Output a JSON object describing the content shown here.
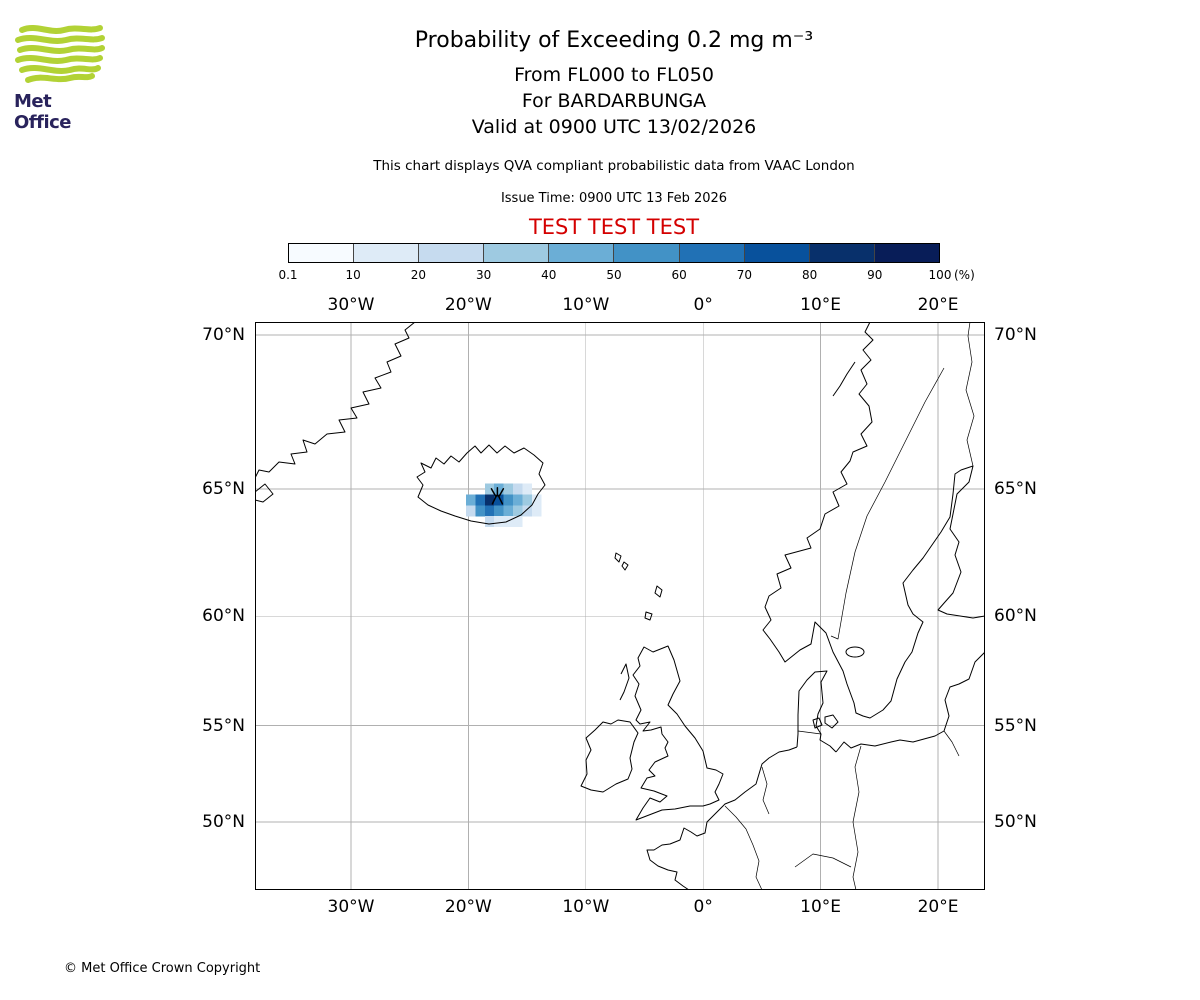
{
  "header": {
    "logo_text": "Met Office",
    "title": "Probability of Exceeding 0.2 mg m⁻³",
    "subtitle_flight_levels": "From FL000 to FL050",
    "subtitle_volcano": "For BARDARBUNGA",
    "subtitle_valid": "Valid at 0900 UTC 13/02/2026",
    "description": "This chart displays QVA compliant probabilistic data from VAAC London",
    "issue_time": "Issue Time: 0900 UTC 13 Feb 2026",
    "test_banner": "TEST TEST TEST"
  },
  "footer": {
    "copyright": "© Met Office Crown Copyright"
  },
  "colors": {
    "test_banner": "#d40000",
    "logo_green": "#b2d235",
    "logo_text": "#29235c",
    "grid_line": "#b0b0b0",
    "coastline": "#000000"
  },
  "chart_data": {
    "type": "heatmap",
    "title": "Probability of Exceeding 0.2 mg m⁻³",
    "subtitle": "From FL000 to FL050 — For BARDARBUNGA — Valid at 0900 UTC 13/02/2026",
    "projection": "mercator",
    "map_extent": {
      "lon_min": -38.2,
      "lon_max": 24.0,
      "lat_min": 46.1,
      "lat_max": 70.4
    },
    "grid": "on",
    "lon_ticks": [
      {
        "deg": -30,
        "label": "30°W"
      },
      {
        "deg": -20,
        "label": "20°W"
      },
      {
        "deg": -10,
        "label": "10°W"
      },
      {
        "deg": 0,
        "label": "0°"
      },
      {
        "deg": 10,
        "label": "10°E"
      },
      {
        "deg": 20,
        "label": "20°E"
      }
    ],
    "lat_ticks": [
      {
        "deg": 70,
        "label": "70°N"
      },
      {
        "deg": 65,
        "label": "65°N"
      },
      {
        "deg": 60,
        "label": "60°N"
      },
      {
        "deg": 55,
        "label": "55°N"
      },
      {
        "deg": 50,
        "label": "50°N"
      }
    ],
    "legend": {
      "units": "(%)",
      "boundaries": [
        "0.1",
        "10",
        "20",
        "30",
        "40",
        "50",
        "60",
        "70",
        "80",
        "90",
        "100"
      ],
      "colors": [
        "#f7fbff",
        "#deebf7",
        "#c6dbef",
        "#9ecae1",
        "#6baed6",
        "#4292c6",
        "#2171b5",
        "#08519c",
        "#08306b",
        "#081d58"
      ]
    },
    "volcano": {
      "name": "BARDARBUNGA",
      "lon": -17.53,
      "lat": 64.64
    },
    "cell_size": {
      "dlon": 0.8,
      "dlat": 0.4
    },
    "cells": [
      {
        "lon": -18.6,
        "lat": 64.8,
        "p": 30
      },
      {
        "lon": -17.8,
        "lat": 64.8,
        "p": 40
      },
      {
        "lon": -17.0,
        "lat": 64.8,
        "p": 30
      },
      {
        "lon": -16.2,
        "lat": 64.8,
        "p": 20
      },
      {
        "lon": -15.4,
        "lat": 64.8,
        "p": 10
      },
      {
        "lon": -20.2,
        "lat": 64.4,
        "p": 40
      },
      {
        "lon": -19.4,
        "lat": 64.4,
        "p": 60
      },
      {
        "lon": -18.6,
        "lat": 64.4,
        "p": 80
      },
      {
        "lon": -17.8,
        "lat": 64.4,
        "p": 70
      },
      {
        "lon": -17.0,
        "lat": 64.4,
        "p": 50
      },
      {
        "lon": -16.2,
        "lat": 64.4,
        "p": 40
      },
      {
        "lon": -15.4,
        "lat": 64.4,
        "p": 30
      },
      {
        "lon": -14.6,
        "lat": 64.4,
        "p": 10
      },
      {
        "lon": -20.2,
        "lat": 64.0,
        "p": 20
      },
      {
        "lon": -19.4,
        "lat": 64.0,
        "p": 50
      },
      {
        "lon": -18.6,
        "lat": 64.0,
        "p": 60
      },
      {
        "lon": -17.8,
        "lat": 64.0,
        "p": 50
      },
      {
        "lon": -17.0,
        "lat": 64.0,
        "p": 40
      },
      {
        "lon": -16.2,
        "lat": 64.0,
        "p": 30
      },
      {
        "lon": -15.4,
        "lat": 64.0,
        "p": 20
      },
      {
        "lon": -14.6,
        "lat": 64.0,
        "p": 10
      },
      {
        "lon": -18.6,
        "lat": 63.6,
        "p": 20
      },
      {
        "lon": -17.8,
        "lat": 63.6,
        "p": 10
      },
      {
        "lon": -17.0,
        "lat": 63.6,
        "p": 10
      },
      {
        "lon": -16.2,
        "lat": 63.6,
        "p": 10
      }
    ]
  }
}
